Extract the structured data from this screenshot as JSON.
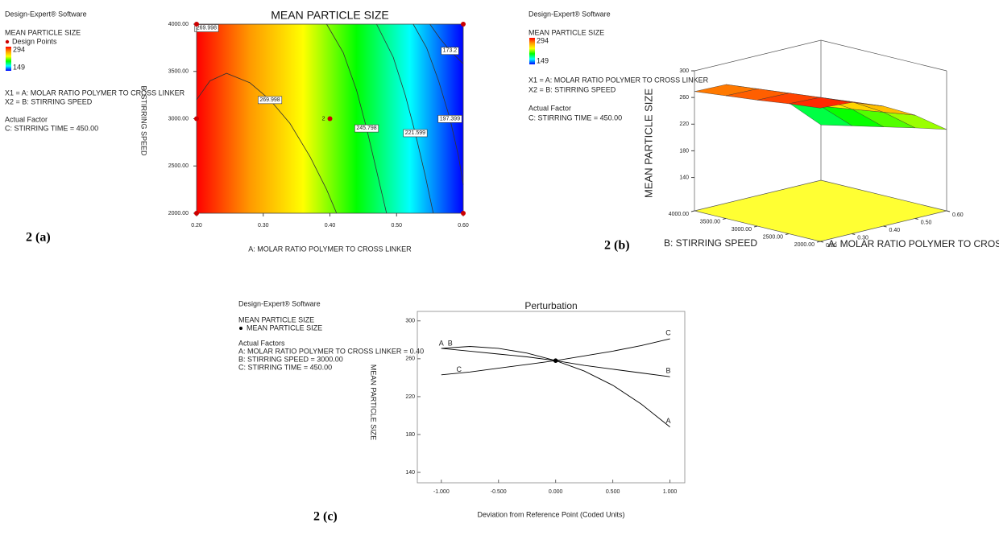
{
  "chart_data": [
    {
      "type": "contour",
      "caption": "2 (a)",
      "software": "Design-Expert® Software",
      "response": "MEAN PARTICLE SIZE",
      "points_label": "Design Points",
      "color_range": [
        149,
        294
      ],
      "colors": [
        "#0000ff",
        "#00ffff",
        "#00ff00",
        "#ffff00",
        "#ff9900",
        "#ff0000"
      ],
      "notes": [
        "X1 = A: MOLAR RATIO POLYMER TO CROSS LINKER",
        "X2 = B: STIRRING SPEED"
      ],
      "factor_heading": "Actual Factor",
      "factors": [
        "C: STIRRING TIME = 450.00"
      ],
      "title": "MEAN PARTICLE SIZE",
      "x_label": "A: MOLAR RATIO POLYMER TO CROSS LINKER",
      "y_label": "B: STIRRING SPEED",
      "xlim": [
        0.2,
        0.6
      ],
      "ylim": [
        2000,
        4000
      ],
      "xticks": [
        {
          "value": 0.2,
          "label": "0.20"
        },
        {
          "value": 0.3,
          "label": "0.30"
        },
        {
          "value": 0.4,
          "label": "0.40"
        },
        {
          "value": 0.5,
          "label": "0.50"
        },
        {
          "value": 0.6,
          "label": "0.60"
        }
      ],
      "yticks": [
        {
          "value": 2000,
          "label": "2000.00"
        },
        {
          "value": 2500,
          "label": "2500.00"
        },
        {
          "value": 3000,
          "label": "3000.00"
        },
        {
          "value": 3500,
          "label": "3500.00"
        },
        {
          "value": 4000,
          "label": "4000.00"
        }
      ],
      "contours": [
        {
          "level": 269.998,
          "x": [
            0.2,
            0.215,
            0.23
          ],
          "y": [
            3930,
            3960,
            4000
          ]
        },
        {
          "level": 269.998,
          "x": [
            0.2,
            0.22,
            0.245,
            0.28,
            0.31,
            0.34,
            0.37,
            0.395,
            0.41
          ],
          "y": [
            3200,
            3400,
            3480,
            3380,
            3200,
            2950,
            2600,
            2250,
            2000
          ]
        },
        {
          "level": 245.798,
          "x": [
            0.395,
            0.42,
            0.44,
            0.455,
            0.47,
            0.485
          ],
          "y": [
            4000,
            3700,
            3300,
            2900,
            2450,
            2000
          ]
        },
        {
          "level": 221.599,
          "x": [
            0.47,
            0.495,
            0.513,
            0.528,
            0.543,
            0.555
          ],
          "y": [
            4000,
            3650,
            3250,
            2850,
            2400,
            2000
          ]
        },
        {
          "level": 197.399,
          "x": [
            0.525,
            0.545,
            0.563,
            0.58,
            0.593,
            0.6
          ],
          "y": [
            4000,
            3750,
            3400,
            3000,
            2600,
            2300
          ]
        },
        {
          "level": 173.2,
          "x": [
            0.55,
            0.565,
            0.58,
            0.6
          ],
          "y": [
            4000,
            3850,
            3720,
            3580
          ]
        }
      ],
      "design_points": {
        "color": "#cc0000",
        "x": [
          0.2,
          0.6,
          0.2,
          0.4,
          0.2,
          0.6
        ],
        "y": [
          4000,
          4000,
          3000,
          3000,
          2000,
          2000
        ],
        "labels": [
          null,
          null,
          null,
          2,
          null,
          null
        ]
      }
    },
    {
      "type": "surface",
      "caption": "2 (b)",
      "software": "Design-Expert® Software",
      "response": "MEAN PARTICLE SIZE",
      "color_range": [
        149,
        294
      ],
      "colors": [
        "#0000ff",
        "#00ffff",
        "#00ff00",
        "#ffff00",
        "#ff9900",
        "#ff0000"
      ],
      "notes": [
        "X1 = A: MOLAR RATIO POLYMER TO CROSS LINKER",
        "X2 = B: STIRRING SPEED"
      ],
      "factor_heading": "Actual Factor",
      "factors": [
        "C: STIRRING TIME = 450.00"
      ],
      "x_label": "A: MOLAR RATIO POLYMER TO CROSS",
      "y_label": "B: STIRRING SPEED",
      "z_label": "MEAN PARTICLE SIZE",
      "floor_color": "#ffff33",
      "xlim": [
        0.2,
        0.6
      ],
      "ylim": [
        2000,
        4000
      ],
      "zlim": [
        90,
        300
      ],
      "xticks": [
        {
          "value": 0.2,
          "label": "0.20"
        },
        {
          "value": 0.3,
          "label": "0.30"
        },
        {
          "value": 0.4,
          "label": "0.40"
        },
        {
          "value": 0.5,
          "label": "0.50"
        },
        {
          "value": 0.6,
          "label": "0.60"
        }
      ],
      "yticks": [
        {
          "value": 2000,
          "label": "2000.00"
        },
        {
          "value": 2500,
          "label": "2500.00"
        },
        {
          "value": 3000,
          "label": "3000.00"
        },
        {
          "value": 3500,
          "label": "3500.00"
        },
        {
          "value": 4000,
          "label": "4000.00"
        }
      ],
      "zticks": [
        140,
        180,
        220,
        260,
        300
      ],
      "x": [
        0.2,
        0.3,
        0.4,
        0.5,
        0.6
      ],
      "y": [
        2000,
        2500,
        3000,
        3500,
        4000
      ],
      "z": [
        [
          290,
          285,
          279,
          274,
          269
        ],
        [
          287,
          283,
          278,
          273,
          268
        ],
        [
          270,
          265,
          259,
          253,
          247
        ],
        [
          245,
          238,
          231,
          224,
          217
        ],
        [
          212,
          203,
          193,
          183,
          173
        ]
      ]
    },
    {
      "type": "line",
      "caption": "2 (c)",
      "software": "Design-Expert® Software",
      "response": "MEAN PARTICLE SIZE",
      "legend_label": "MEAN PARTICLE SIZE",
      "factor_heading": "Actual Factors",
      "factors": [
        "A: MOLAR RATIO POLYMER TO CROSS LINKER = 0.40",
        "B: STIRRING SPEED = 3000.00",
        "C: STIRRING TIME = 450.00"
      ],
      "title": "Perturbation",
      "x_label": "Deviation from Reference Point (Coded Units)",
      "y_label": "MEAN PARTICLE SIZE",
      "xlim": [
        -1.21,
        1.13
      ],
      "ylim": [
        129,
        310
      ],
      "xticks": [
        {
          "value": -1,
          "label": "-1.000"
        },
        {
          "value": -0.5,
          "label": "-0.500"
        },
        {
          "value": 0,
          "label": "0.000"
        },
        {
          "value": 0.5,
          "label": "0.500"
        },
        {
          "value": 1,
          "label": "1.000"
        }
      ],
      "yticks": [
        140,
        180,
        220,
        260,
        300
      ],
      "x": [
        -1,
        -0.75,
        -0.5,
        -0.25,
        0,
        0.25,
        0.5,
        0.75,
        1
      ],
      "series": [
        {
          "name": "A",
          "color": "#000000",
          "values": [
            271,
            273,
            271,
            266,
            258,
            247,
            232,
            212,
            188
          ]
        },
        {
          "name": "B",
          "color": "#000000",
          "values": [
            271,
            268,
            265,
            262,
            258,
            253,
            249,
            245,
            241
          ]
        },
        {
          "name": "C",
          "color": "#000000",
          "values": [
            243,
            246,
            250,
            254,
            258,
            263,
            268,
            274,
            281
          ]
        }
      ],
      "reference_point": {
        "x": 0,
        "y": 258
      }
    }
  ]
}
